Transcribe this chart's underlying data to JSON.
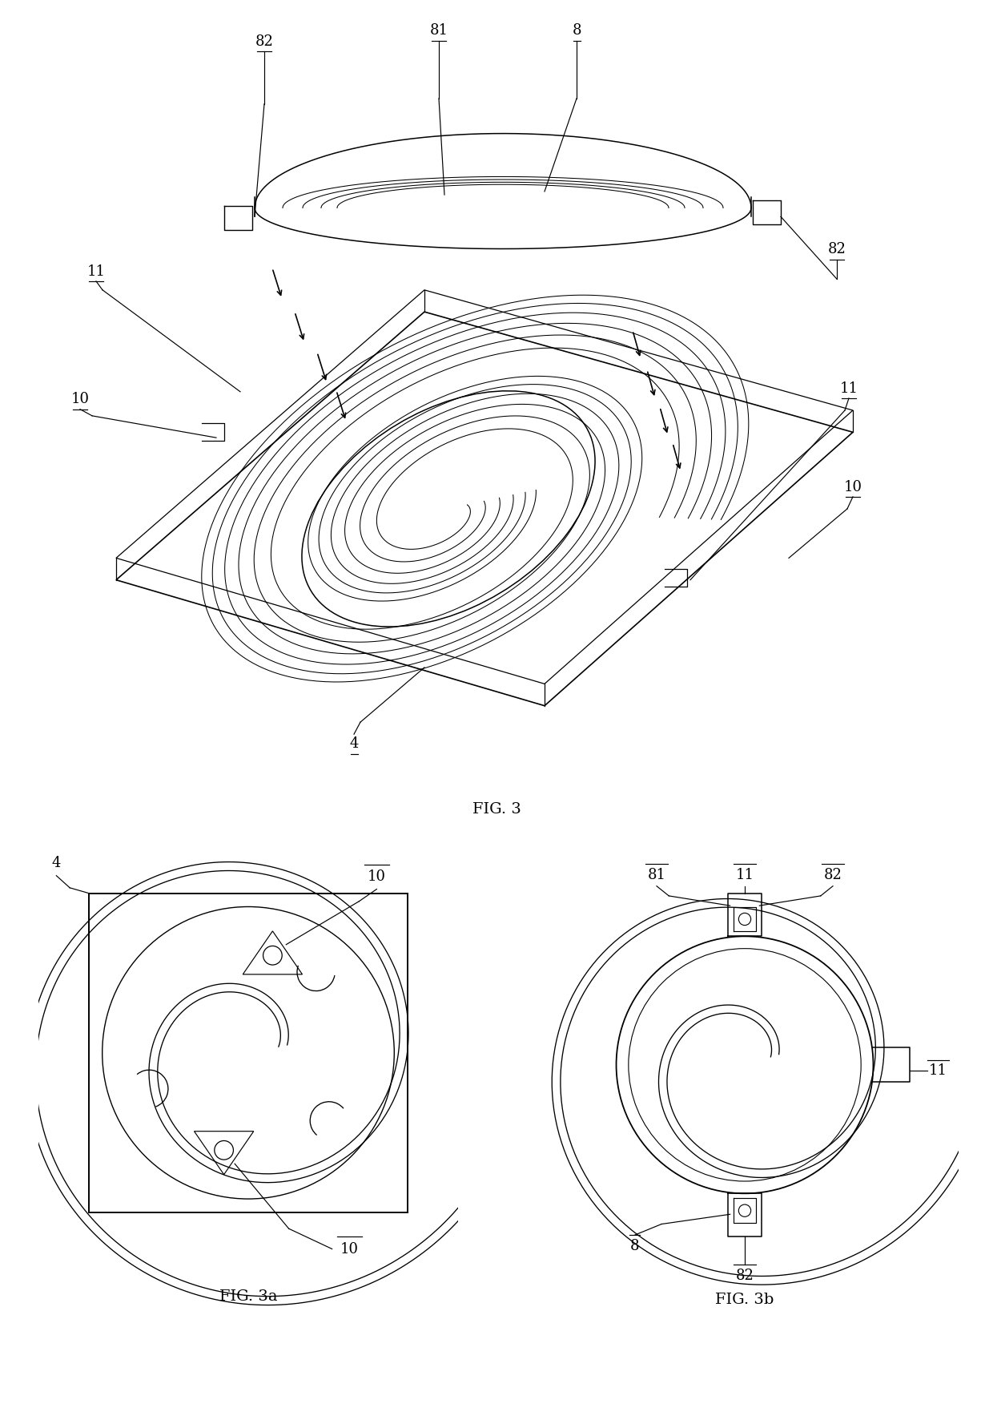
{
  "bg_color": "#ffffff",
  "line_color": "#000000",
  "fig3_caption": "FIG. 3",
  "fig3a_caption": "FIG. 3a",
  "fig3b_caption": "FIG. 3b",
  "label_fontsize": 13,
  "caption_fontsize": 14
}
